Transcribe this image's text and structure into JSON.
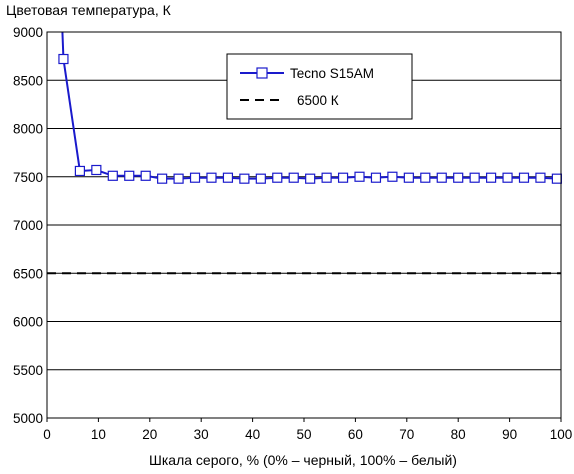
{
  "chart_data": {
    "type": "line",
    "title": "Цветовая температура, К",
    "xlabel": "Шкала серого, % (0% – черный, 100% – белый)",
    "ylabel": "",
    "xlim": [
      0,
      100
    ],
    "ylim": [
      5000,
      9000
    ],
    "x_ticks": [
      0,
      10,
      20,
      30,
      40,
      50,
      60,
      70,
      80,
      90,
      100
    ],
    "y_ticks": [
      5000,
      5500,
      6000,
      6500,
      7000,
      7500,
      8000,
      8500,
      9000
    ],
    "grid": "horizontal",
    "legend_position": "top-right",
    "series": [
      {
        "name": "Tecno S15AM",
        "color": "#1a1acc",
        "marker": "square-open",
        "x": [
          3.2,
          6.4,
          9.6,
          12.8,
          16.0,
          19.2,
          22.4,
          25.6,
          28.8,
          32.0,
          35.2,
          38.4,
          41.6,
          44.8,
          48.0,
          51.2,
          54.4,
          57.6,
          60.8,
          64.0,
          67.2,
          70.4,
          73.6,
          76.8,
          80.0,
          83.2,
          86.4,
          89.6,
          92.8,
          96.0,
          99.2
        ],
        "values": [
          8720,
          7560,
          7570,
          7510,
          7510,
          7510,
          7480,
          7480,
          7490,
          7490,
          7490,
          7480,
          7480,
          7490,
          7490,
          7480,
          7490,
          7490,
          7500,
          7490,
          7500,
          7490,
          7490,
          7490,
          7490,
          7490,
          7490,
          7490,
          7490,
          7490,
          7480
        ],
        "line_start": {
          "x": 3.0,
          "y": 9000
        }
      },
      {
        "name": "6500 К",
        "color": "#000000",
        "dash": "dashed",
        "x": [
          0,
          100
        ],
        "values": [
          6500,
          6500
        ]
      }
    ]
  }
}
